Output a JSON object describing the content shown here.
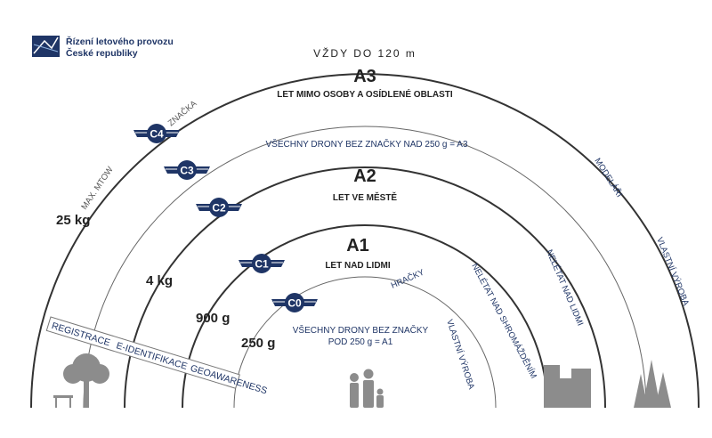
{
  "logo": {
    "line1": "Řízení letového provozu",
    "line2": "České republiky"
  },
  "top_label": "VŽDY DO 120 m",
  "categories": {
    "a3": {
      "title": "A3",
      "subtitle": "LET MIMO OSOBY A OSÍDLENÉ OBLASTI"
    },
    "a2": {
      "title": "A2",
      "subtitle": "LET VE MĚSTĚ"
    },
    "a1": {
      "title": "A1",
      "subtitle": "LET NAD LIDMI"
    }
  },
  "notes": {
    "a3_unmarked": "VŠECHNY DRONY BEZ ZNAČKY NAD 250 g = A3",
    "a1_unmarked_line1": "VŠECHNY DRONY BEZ ZNAČKY",
    "a1_unmarked_line2": "POD 250 g = A1"
  },
  "badges": {
    "c0": "C0",
    "c1": "C1",
    "c2": "C2",
    "c3": "C3",
    "c4": "C4"
  },
  "weights": {
    "w25": "25 kg",
    "w4": "4 kg",
    "w900": "900 g",
    "w250": "250 g"
  },
  "arc_labels": {
    "max_mtow": "MAX. MTOW",
    "znacka": "ZNAČKA",
    "modelari": "MODELÁŘI",
    "vlastni_vyroba_outer": "VLASTNÍ VÝROBA",
    "nelet_lidmi": "NELÉTAT NAD LIDMI",
    "nelet_shrom": "NELÉTAT NAD SHROMÁŽDĚNÍM",
    "hracky": "HRAČKY",
    "vlastni_vyroba_inner": "VLASTNÍ VÝROBA"
  },
  "requirements": {
    "registrace": "REGISTRACE",
    "eid": "E-IDENTIFIKACE",
    "geo": "GEOAWARENESS"
  },
  "colors": {
    "arc": "#2a2a2a",
    "badge": "#1f3566",
    "icon": "#8c8c8c",
    "logo": "#1f3566"
  },
  "icons": [
    "tree-bench-icon",
    "family-icon",
    "city-buildings-icon",
    "forest-icon",
    "air-navigation-logo-icon"
  ]
}
